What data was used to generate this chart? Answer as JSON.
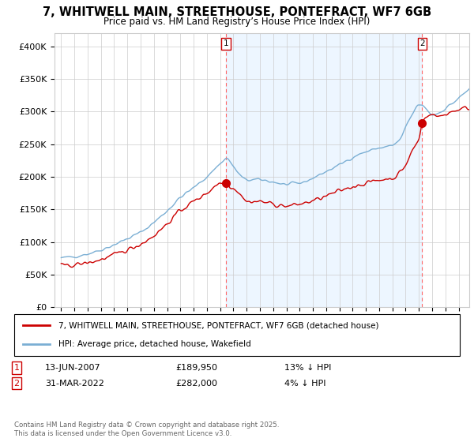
{
  "title": "7, WHITWELL MAIN, STREETHOUSE, PONTEFRACT, WF7 6GB",
  "subtitle": "Price paid vs. HM Land Registry’s House Price Index (HPI)",
  "legend_house": "7, WHITWELL MAIN, STREETHOUSE, PONTEFRACT, WF7 6GB (detached house)",
  "legend_hpi": "HPI: Average price, detached house, Wakefield",
  "sale1_date": "13-JUN-2007",
  "sale1_price": 189950,
  "sale1_label": "13% ↓ HPI",
  "sale2_date": "31-MAR-2022",
  "sale2_price": 282000,
  "sale2_label": "4% ↓ HPI",
  "copyright": "Contains HM Land Registry data © Crown copyright and database right 2025.\nThis data is licensed under the Open Government Licence v3.0.",
  "house_color": "#cc0000",
  "hpi_color": "#7bafd4",
  "hpi_fill_color": "#ddeeff",
  "vline_color": "#ff6666",
  "marker_color": "#cc0000",
  "ylim": [
    0,
    420000
  ],
  "yticks": [
    0,
    50000,
    100000,
    150000,
    200000,
    250000,
    300000,
    350000,
    400000
  ],
  "sale1_x": 2007.45,
  "sale2_x": 2022.25,
  "xmin": 1994.5,
  "xmax": 2025.8
}
